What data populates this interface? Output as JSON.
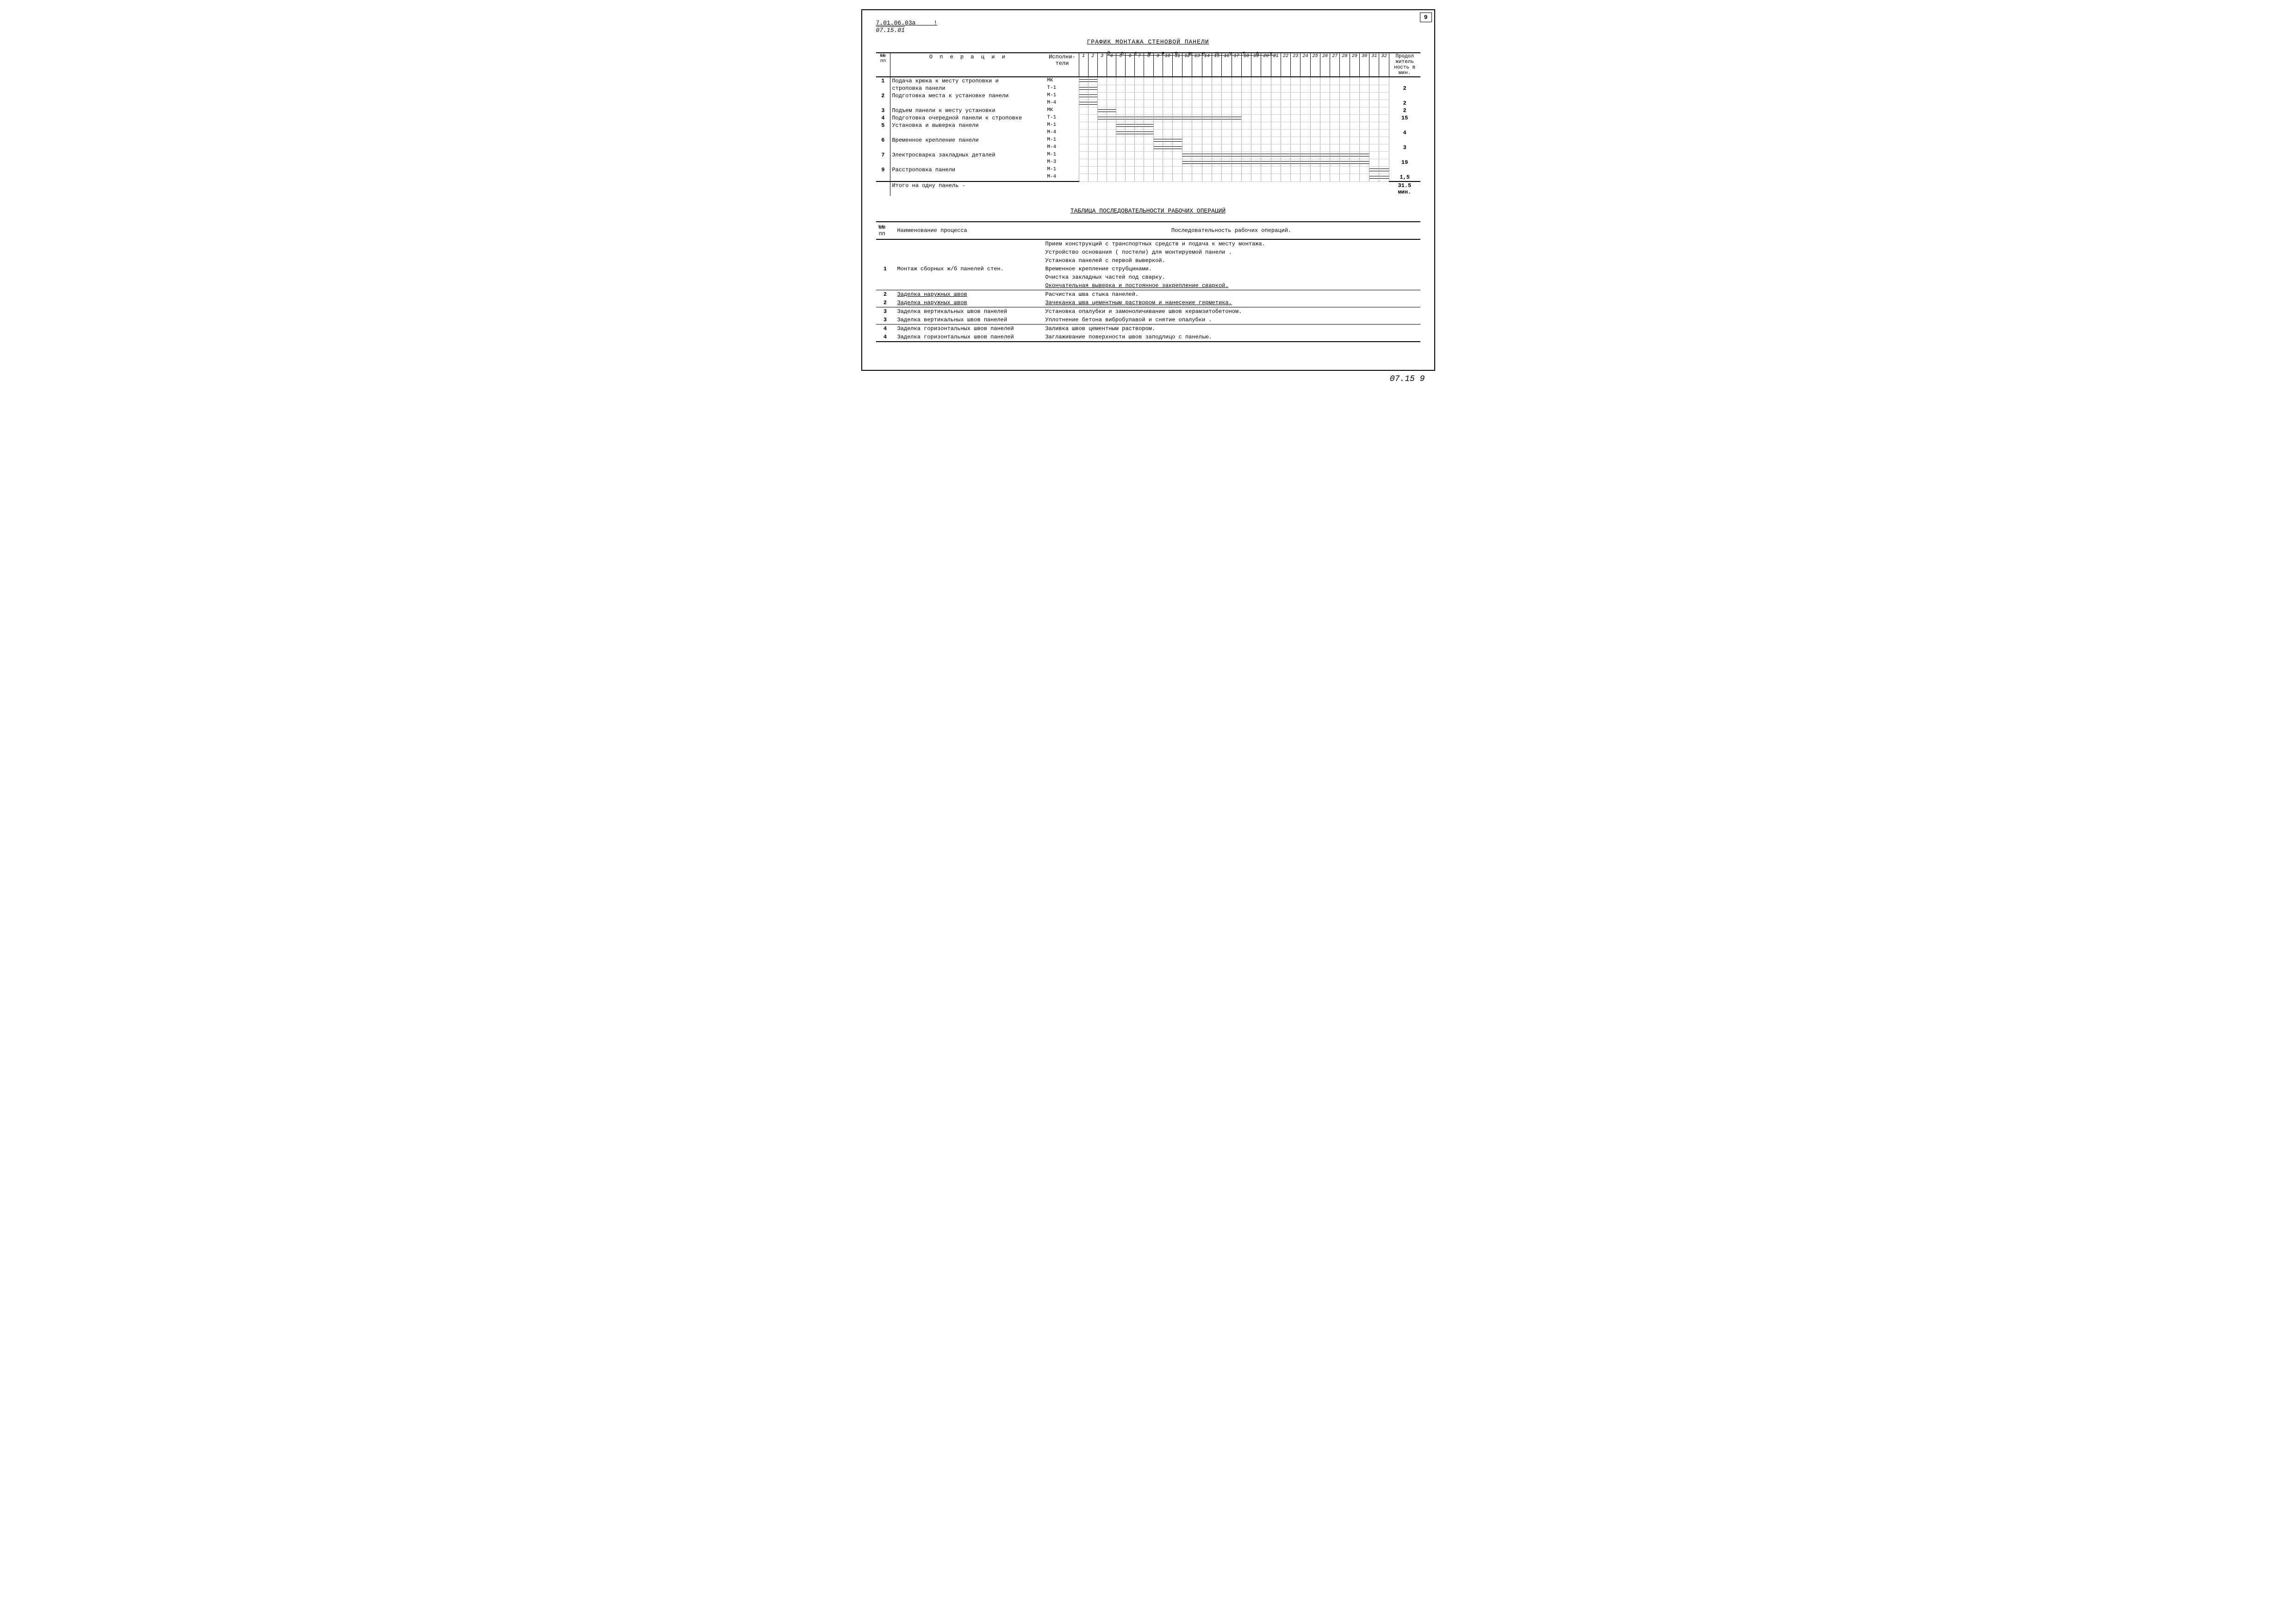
{
  "page_number": "9",
  "header": {
    "code_top": "7.01.06.03а",
    "code_bottom": "07.15.01"
  },
  "footer_code": "07.15  9",
  "gantt": {
    "title": "ГРАФИК МОНТАЖА СТЕНОВОЙ ПАНЕЛИ",
    "time_axis_label": "В р е м я     в     м и н у т а х",
    "columns": {
      "num": "№№\nпп",
      "operations": "О п е р а ц и и",
      "executors": "Исполни-\nтели",
      "duration": "Продол\nжитель\nность в\nмин."
    },
    "time_cols": 32,
    "rows": [
      {
        "num": "1",
        "op": "Подача крюка к месту строповки и\nстроповка панели",
        "exec": "МК\nТ-1",
        "dur": "2",
        "bars": [
          {
            "start": 1,
            "end": 2
          },
          {
            "start": 1,
            "end": 2
          }
        ]
      },
      {
        "num": "2",
        "op": "Подготовка места к установке панели",
        "exec": "М-1\nМ-4",
        "dur": "2",
        "bars": [
          {
            "start": 1,
            "end": 2
          },
          {
            "start": 1,
            "end": 2
          }
        ]
      },
      {
        "num": "3",
        "op": "Подъем панели к месту установки",
        "exec": "МК",
        "dur": "2",
        "bars": [
          {
            "start": 3,
            "end": 4
          }
        ]
      },
      {
        "num": "4",
        "op": "Подготовка очередной панели к строповке",
        "exec": "Т-1",
        "dur": "15",
        "bars": [
          {
            "start": 3,
            "end": 17
          }
        ]
      },
      {
        "num": "5",
        "op": "Установка и выверка панели",
        "exec": "М-1\nМ-4",
        "dur": "4",
        "bars": [
          {
            "start": 5,
            "end": 8
          },
          {
            "start": 5,
            "end": 8
          }
        ]
      },
      {
        "num": "6",
        "op": "Временное крепление панели",
        "exec": "М-1\nМ-4",
        "dur": "3",
        "bars": [
          {
            "start": 9,
            "end": 11
          },
          {
            "start": 9,
            "end": 11
          }
        ]
      },
      {
        "num": "7",
        "op": "Электросварка закладных деталей",
        "exec": "М-1\nМ-3",
        "dur": "19",
        "bars": [
          {
            "start": 12,
            "end": 30
          },
          {
            "start": 12,
            "end": 30
          }
        ]
      },
      {
        "num": "9",
        "op": "Расстроповка панели",
        "exec": "М-1\nМ-4",
        "dur": "1,5",
        "bars": [
          {
            "start": 31,
            "end": 32
          },
          {
            "start": 31,
            "end": 32
          }
        ]
      }
    ],
    "total_label": "Итого на одну панель -",
    "total_value": "31.5 мин."
  },
  "sequence": {
    "title": "ТАБЛИЦА ПОСЛЕДОВАТЕЛЬНОСТИ РАБОЧИХ ОПЕРАЦИЙ",
    "columns": {
      "num": "№№\nпп",
      "name": "Наименование процесса",
      "seq": "Последовательность рабочих операций."
    },
    "rows": [
      {
        "num": "1",
        "name": "Монтаж сборных ж/б панелей   стен.",
        "ops": [
          "Прием конструкций с транспортных средств и подача к месту монтажа.",
          "Устройство основания ( постели) для монтируемой панели .",
          "Установка панелей с первой выверкой.",
          "Временное крепление струбцинами.",
          "Очистка закладных частей под сварку.",
          "Окончательная выверка и постоянное закрепление сваркой."
        ],
        "underline_last": true
      },
      {
        "num": "2",
        "name": "Заделка наружных швов",
        "name_underline": true,
        "ops": [
          "Расчистка шва стыка панелей.",
          "Зачеканка шва цементным раствором и нанесение герметика."
        ],
        "underline_last": true
      },
      {
        "num": "3",
        "name": "Заделка вертикальных швов панелей",
        "ops": [
          "Установка опалубки и замоноличивание швов керамзитобетоном.",
          "Уплотнение бетона вибробулавой и снятие опалубки ."
        ]
      },
      {
        "num": "4",
        "name": "Заделка горизонтальных швов панелей",
        "ops": [
          "Заливка швов цементным раствором.",
          "Заглаживание поверхности швов заподлицо с панелью."
        ]
      }
    ]
  },
  "colors": {
    "line": "#000000",
    "grid": "#cccccc",
    "bg": "#ffffff"
  }
}
